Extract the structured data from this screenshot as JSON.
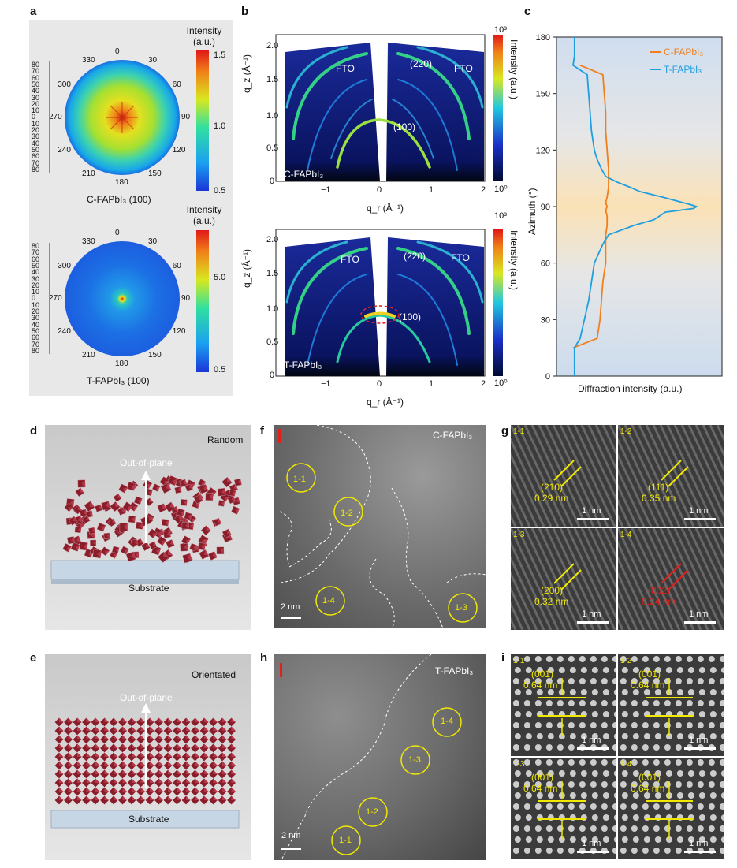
{
  "panels": {
    "a": "a",
    "b": "b",
    "c": "c",
    "d": "d",
    "e": "e",
    "f": "f",
    "g": "g",
    "h": "h",
    "i": "i"
  },
  "a": {
    "top": {
      "label": "C-FAPbI₃ (100)",
      "cbar_title": "Intensity (a.u.)",
      "cbar_ticks": [
        "1.5",
        "1.0",
        "0.5"
      ],
      "angles": [
        "0",
        "30",
        "60",
        "90",
        "120",
        "150",
        "180",
        "210",
        "240",
        "270",
        "300",
        "330"
      ],
      "radial_ticks": [
        "80",
        "70",
        "60",
        "50",
        "40",
        "30",
        "20",
        "10",
        "0",
        "10",
        "20",
        "30",
        "40",
        "50",
        "60",
        "70",
        "80"
      ]
    },
    "bottom": {
      "label": "T-FAPbI₃ (100)",
      "cbar_title": "Intensity (a.u.)",
      "cbar_ticks": [
        "5.0",
        "0.5"
      ],
      "angles": [
        "0",
        "30",
        "60",
        "90",
        "120",
        "150",
        "180",
        "210",
        "240",
        "270",
        "300",
        "330"
      ],
      "radial_ticks": [
        "80",
        "70",
        "60",
        "50",
        "40",
        "30",
        "20",
        "10",
        "0",
        "10",
        "20",
        "30",
        "40",
        "50",
        "60",
        "70",
        "80"
      ]
    }
  },
  "b": {
    "top": {
      "sample": "C-FAPbI₃",
      "ylabel": "q_z (Å⁻¹)",
      "xlabel": "q_r (Å⁻¹)",
      "yticks": [
        "0",
        "0.5",
        "1.0",
        "1.5",
        "2.0"
      ],
      "xticks": [
        "−1",
        "0",
        "1",
        "2"
      ],
      "annotations": [
        "FTO",
        "(220)",
        "FTO",
        "(100)"
      ],
      "cbar_title": "Intensity (a.u.)",
      "cbar_top": "10³",
      "cbar_bottom": "10⁰"
    },
    "bottom": {
      "sample": "T-FAPbI₃",
      "ylabel": "q_z (Å⁻¹)",
      "xlabel": "q_r (Å⁻¹)",
      "yticks": [
        "0",
        "0.5",
        "1.0",
        "1.5",
        "2.0"
      ],
      "xticks": [
        "−1",
        "0",
        "1",
        "2"
      ],
      "annotations": [
        "FTO",
        "(220)",
        "FTO",
        "(100)"
      ],
      "cbar_title": "Intensity (a.u.)",
      "cbar_top": "10³",
      "cbar_bottom": "10⁰"
    }
  },
  "chart_data": {
    "type": "line",
    "title": "",
    "xlabel": "Diffraction intensity (a.u.)",
    "ylabel": "Azimuth (°)",
    "ylim": [
      0,
      180
    ],
    "yticks": [
      "0",
      "30",
      "60",
      "90",
      "120",
      "150",
      "180"
    ],
    "legend_position": "top-right",
    "colors": {
      "C-FAPbI₃": "#f07f1c",
      "T-FAPbI₃": "#1f9ee0"
    },
    "series": [
      {
        "name": "C-FAPbI₃",
        "azimuth": [
          15,
          20,
          30,
          40,
          50,
          60,
          70,
          75,
          80,
          85,
          88,
          90,
          92,
          95,
          100,
          105,
          110,
          120,
          130,
          140,
          150,
          160,
          165
        ],
        "intensity": [
          0.05,
          0.22,
          0.24,
          0.25,
          0.26,
          0.28,
          0.28,
          0.28,
          0.29,
          0.29,
          0.28,
          0.29,
          0.28,
          0.29,
          0.3,
          0.3,
          0.3,
          0.29,
          0.28,
          0.28,
          0.27,
          0.26,
          0.1
        ]
      },
      {
        "name": "T-FAPbI₃",
        "azimuth": [
          0,
          15,
          20,
          30,
          40,
          50,
          60,
          65,
          70,
          75,
          80,
          83,
          85,
          87,
          89,
          90,
          91,
          93,
          95,
          98,
          100,
          103,
          106,
          110,
          115,
          120,
          130,
          140,
          150,
          160,
          165,
          170,
          180
        ],
        "intensity": [
          0.06,
          0.06,
          0.1,
          0.13,
          0.16,
          0.18,
          0.2,
          0.23,
          0.26,
          0.3,
          0.48,
          0.62,
          0.66,
          0.7,
          0.9,
          0.92,
          0.88,
          0.78,
          0.68,
          0.52,
          0.46,
          0.36,
          0.28,
          0.25,
          0.22,
          0.2,
          0.18,
          0.17,
          0.16,
          0.15,
          0.05,
          0.06,
          0.06
        ]
      }
    ]
  },
  "d": {
    "title": "Random",
    "arrow_label": "Out-of-plane",
    "substrate": "Substrate"
  },
  "e": {
    "title": "Orientated",
    "arrow_label": "Out-of-plane",
    "substrate": "Substrate"
  },
  "f": {
    "sample": "C-FAPbI₃",
    "scale": "2 nm",
    "regions": [
      "1-1",
      "1-2",
      "1-3",
      "1-4"
    ]
  },
  "h": {
    "sample": "T-FAPbI₃",
    "scale": "2 nm",
    "regions": [
      "1-1",
      "1-2",
      "1-3",
      "1-4"
    ]
  },
  "g": {
    "scale": "1 nm",
    "tiles": [
      {
        "id": "1-1",
        "plane": "(210)",
        "d": "0.29 nm"
      },
      {
        "id": "1-2",
        "plane": "(111)",
        "d": "0.35 nm"
      },
      {
        "id": "1-3",
        "plane": "(200)",
        "d": "0.32 nm"
      },
      {
        "id": "1-4",
        "plane": "(002)",
        "d": "0.24 nm"
      }
    ]
  },
  "i": {
    "scale": "1 nm",
    "tiles": [
      {
        "id": "1-1",
        "plane": "(001)",
        "d": "0.64 nm"
      },
      {
        "id": "1-2",
        "plane": "(001)",
        "d": "0.64 nm"
      },
      {
        "id": "1-3",
        "plane": "(001)",
        "d": "0.64 nm"
      },
      {
        "id": "1-4",
        "plane": "(001)",
        "d": "0.64 nm"
      }
    ]
  }
}
